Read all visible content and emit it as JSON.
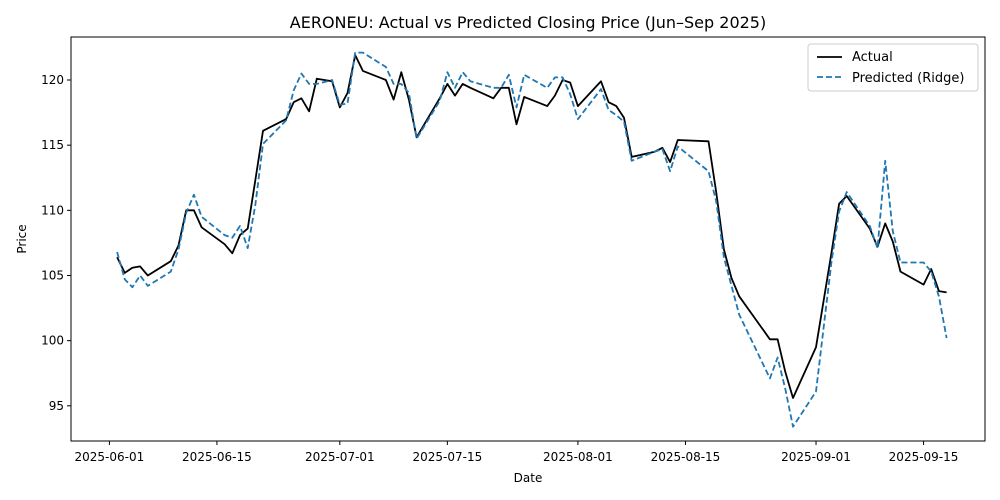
{
  "chart_data": {
    "type": "line",
    "title": "AERONEU: Actual vs Predicted Closing Price (Jun–Sep 2025)",
    "xlabel": "Date",
    "ylabel": "Price",
    "xlim": [
      "2025-05-27",
      "2025-09-23"
    ],
    "ylim": [
      92.3,
      123.3
    ],
    "x_ticks": [
      "2025-06-01",
      "2025-06-15",
      "2025-07-01",
      "2025-07-15",
      "2025-08-01",
      "2025-08-15",
      "2025-09-01",
      "2025-09-15"
    ],
    "y_ticks": [
      95,
      100,
      105,
      110,
      115,
      120
    ],
    "grid": false,
    "legend_position": "top-right",
    "series": [
      {
        "name": "Actual",
        "color": "#000000",
        "style": "solid",
        "points": [
          [
            "2025-06-02",
            106.4
          ],
          [
            "2025-06-03",
            105.2
          ],
          [
            "2025-06-04",
            105.6
          ],
          [
            "2025-06-05",
            105.7
          ],
          [
            "2025-06-06",
            105.0
          ],
          [
            "2025-06-09",
            106.1
          ],
          [
            "2025-06-10",
            107.3
          ],
          [
            "2025-06-11",
            110.0
          ],
          [
            "2025-06-12",
            110.0
          ],
          [
            "2025-06-13",
            108.7
          ],
          [
            "2025-06-16",
            107.4
          ],
          [
            "2025-06-17",
            106.7
          ],
          [
            "2025-06-18",
            108.1
          ],
          [
            "2025-06-19",
            108.6
          ],
          [
            "2025-06-20",
            112.3
          ],
          [
            "2025-06-21",
            116.1
          ],
          [
            "2025-06-24",
            117.0
          ],
          [
            "2025-06-25",
            118.3
          ],
          [
            "2025-06-26",
            118.6
          ],
          [
            "2025-06-27",
            117.6
          ],
          [
            "2025-06-28",
            120.1
          ],
          [
            "2025-06-30",
            119.9
          ],
          [
            "2025-07-01",
            117.9
          ],
          [
            "2025-07-02",
            119.0
          ],
          [
            "2025-07-03",
            121.9
          ],
          [
            "2025-07-04",
            120.7
          ],
          [
            "2025-07-07",
            120.0
          ],
          [
            "2025-07-08",
            118.5
          ],
          [
            "2025-07-09",
            120.6
          ],
          [
            "2025-07-10",
            118.5
          ],
          [
            "2025-07-11",
            115.6
          ],
          [
            "2025-07-14",
            118.6
          ],
          [
            "2025-07-15",
            119.7
          ],
          [
            "2025-07-16",
            118.8
          ],
          [
            "2025-07-17",
            119.7
          ],
          [
            "2025-07-18",
            119.4
          ],
          [
            "2025-07-21",
            118.6
          ],
          [
            "2025-07-22",
            119.4
          ],
          [
            "2025-07-23",
            119.4
          ],
          [
            "2025-07-24",
            116.6
          ],
          [
            "2025-07-25",
            118.7
          ],
          [
            "2025-07-28",
            118.0
          ],
          [
            "2025-07-29",
            118.8
          ],
          [
            "2025-07-30",
            120.0
          ],
          [
            "2025-07-31",
            119.8
          ],
          [
            "2025-08-01",
            118.0
          ],
          [
            "2025-08-04",
            119.9
          ],
          [
            "2025-08-05",
            118.3
          ],
          [
            "2025-08-06",
            118.0
          ],
          [
            "2025-08-07",
            117.1
          ],
          [
            "2025-08-08",
            114.1
          ],
          [
            "2025-08-11",
            114.5
          ],
          [
            "2025-08-12",
            114.8
          ],
          [
            "2025-08-13",
            113.7
          ],
          [
            "2025-08-14",
            115.4
          ],
          [
            "2025-08-18",
            115.3
          ],
          [
            "2025-08-19",
            111.4
          ],
          [
            "2025-08-20",
            107.0
          ],
          [
            "2025-08-21",
            104.8
          ],
          [
            "2025-08-22",
            103.4
          ],
          [
            "2025-08-26",
            100.1
          ],
          [
            "2025-08-27",
            100.1
          ],
          [
            "2025-08-28",
            97.6
          ],
          [
            "2025-08-29",
            95.6
          ],
          [
            "2025-09-01",
            99.5
          ],
          [
            "2025-09-03",
            106.7
          ],
          [
            "2025-09-04",
            110.5
          ],
          [
            "2025-09-05",
            111.1
          ],
          [
            "2025-09-08",
            108.6
          ],
          [
            "2025-09-09",
            107.2
          ],
          [
            "2025-09-10",
            109.0
          ],
          [
            "2025-09-11",
            107.6
          ],
          [
            "2025-09-12",
            105.3
          ],
          [
            "2025-09-15",
            104.3
          ],
          [
            "2025-09-16",
            105.5
          ],
          [
            "2025-09-17",
            103.8
          ],
          [
            "2025-09-18",
            103.7
          ]
        ]
      },
      {
        "name": "Predicted (Ridge)",
        "color": "#1f77b4",
        "style": "dashed",
        "points": [
          [
            "2025-06-02",
            106.8
          ],
          [
            "2025-06-03",
            104.7
          ],
          [
            "2025-06-04",
            104.1
          ],
          [
            "2025-06-05",
            105.0
          ],
          [
            "2025-06-06",
            104.2
          ],
          [
            "2025-06-09",
            105.3
          ],
          [
            "2025-06-10",
            107.0
          ],
          [
            "2025-06-11",
            109.8
          ],
          [
            "2025-06-12",
            111.2
          ],
          [
            "2025-06-13",
            109.5
          ],
          [
            "2025-06-16",
            108.1
          ],
          [
            "2025-06-17",
            107.9
          ],
          [
            "2025-06-18",
            108.8
          ],
          [
            "2025-06-19",
            107.1
          ],
          [
            "2025-06-20",
            110.4
          ],
          [
            "2025-06-21",
            115.1
          ],
          [
            "2025-06-24",
            116.9
          ],
          [
            "2025-06-25",
            119.2
          ],
          [
            "2025-06-26",
            120.5
          ],
          [
            "2025-06-27",
            119.7
          ],
          [
            "2025-06-28",
            119.7
          ],
          [
            "2025-06-30",
            120.0
          ],
          [
            "2025-07-01",
            118.1
          ],
          [
            "2025-07-02",
            118.2
          ],
          [
            "2025-07-03",
            122.1
          ],
          [
            "2025-07-04",
            122.1
          ],
          [
            "2025-07-07",
            121.0
          ],
          [
            "2025-07-08",
            119.7
          ],
          [
            "2025-07-09",
            119.7
          ],
          [
            "2025-07-10",
            119.0
          ],
          [
            "2025-07-11",
            115.5
          ],
          [
            "2025-07-14",
            118.4
          ],
          [
            "2025-07-15",
            120.6
          ],
          [
            "2025-07-16",
            119.4
          ],
          [
            "2025-07-17",
            120.6
          ],
          [
            "2025-07-18",
            119.9
          ],
          [
            "2025-07-21",
            119.4
          ],
          [
            "2025-07-22",
            119.4
          ],
          [
            "2025-07-23",
            120.4
          ],
          [
            "2025-07-24",
            117.9
          ],
          [
            "2025-07-25",
            120.4
          ],
          [
            "2025-07-28",
            119.4
          ],
          [
            "2025-07-29",
            120.2
          ],
          [
            "2025-07-30",
            120.2
          ],
          [
            "2025-07-31",
            118.9
          ],
          [
            "2025-08-01",
            117.0
          ],
          [
            "2025-08-04",
            119.3
          ],
          [
            "2025-08-05",
            117.7
          ],
          [
            "2025-08-06",
            117.3
          ],
          [
            "2025-08-07",
            116.8
          ],
          [
            "2025-08-08",
            113.8
          ],
          [
            "2025-08-11",
            114.5
          ],
          [
            "2025-08-12",
            114.7
          ],
          [
            "2025-08-13",
            113.0
          ],
          [
            "2025-08-14",
            114.9
          ],
          [
            "2025-08-18",
            113.0
          ],
          [
            "2025-08-19",
            110.7
          ],
          [
            "2025-08-20",
            106.4
          ],
          [
            "2025-08-21",
            104.2
          ],
          [
            "2025-08-22",
            102.0
          ],
          [
            "2025-08-26",
            97.1
          ],
          [
            "2025-08-27",
            98.7
          ],
          [
            "2025-08-28",
            96.3
          ],
          [
            "2025-08-29",
            93.4
          ],
          [
            "2025-09-01",
            96.1
          ],
          [
            "2025-09-03",
            106.0
          ],
          [
            "2025-09-04",
            109.9
          ],
          [
            "2025-09-05",
            111.4
          ],
          [
            "2025-09-08",
            108.8
          ],
          [
            "2025-09-09",
            107.1
          ],
          [
            "2025-09-10",
            113.8
          ],
          [
            "2025-09-11",
            108.4
          ],
          [
            "2025-09-12",
            106.0
          ],
          [
            "2025-09-15",
            106.0
          ],
          [
            "2025-09-16",
            105.3
          ],
          [
            "2025-09-17",
            103.4
          ],
          [
            "2025-09-18",
            100.2
          ]
        ]
      }
    ]
  }
}
